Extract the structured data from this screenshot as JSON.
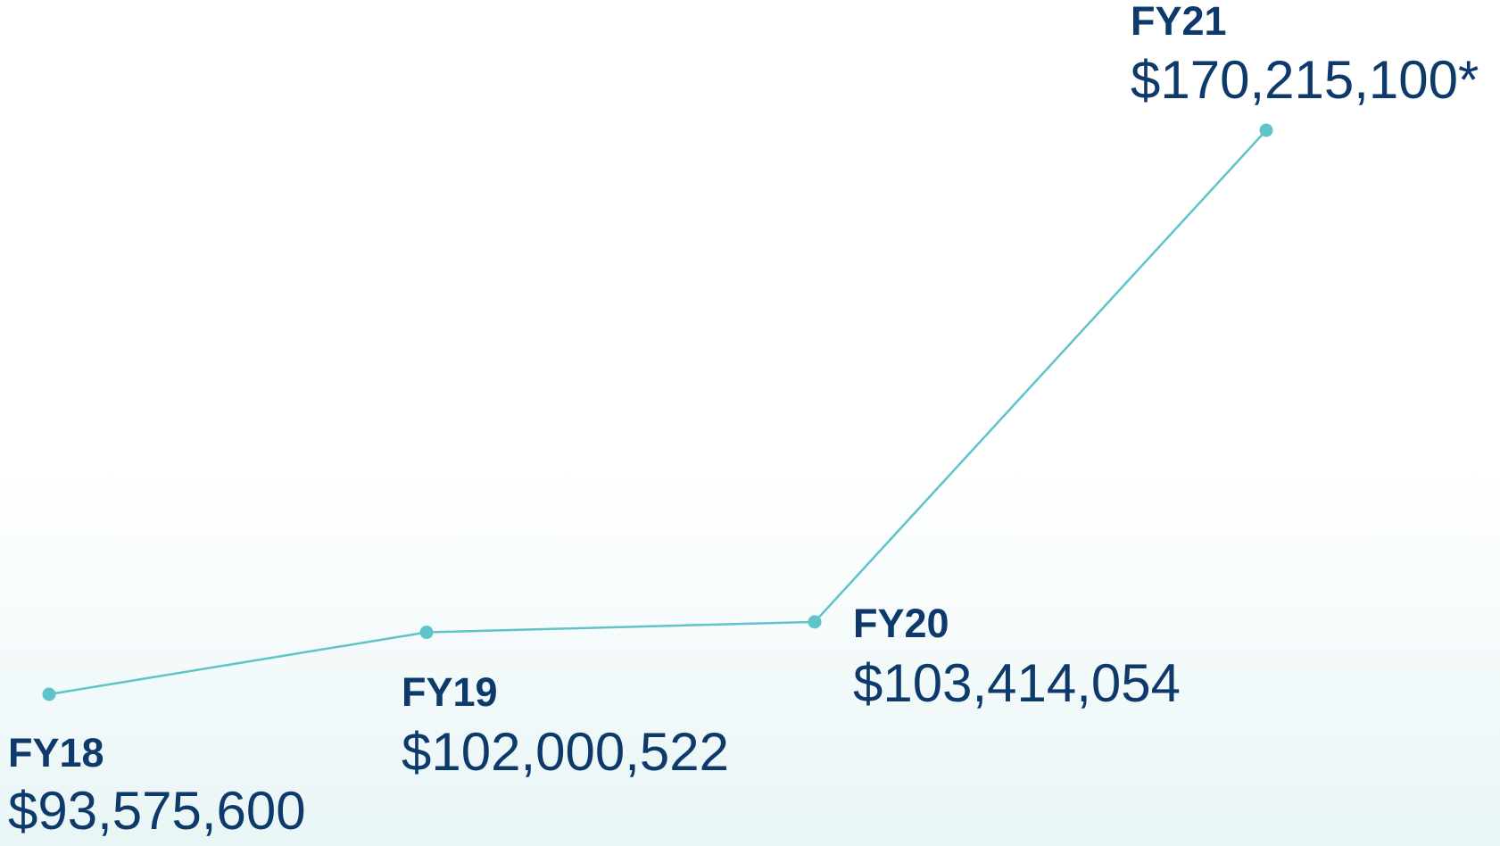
{
  "chart_data": {
    "type": "line",
    "categories": [
      "FY18",
      "FY19",
      "FY20",
      "FY21"
    ],
    "values": [
      93575600,
      102000522,
      103414054,
      170215100
    ],
    "value_labels": [
      "$93,575,600",
      "$102,000,522",
      "$103,414,054",
      "$170,215,100*"
    ],
    "color": "#5fc4c8",
    "text_color": "#0e3a6b"
  }
}
